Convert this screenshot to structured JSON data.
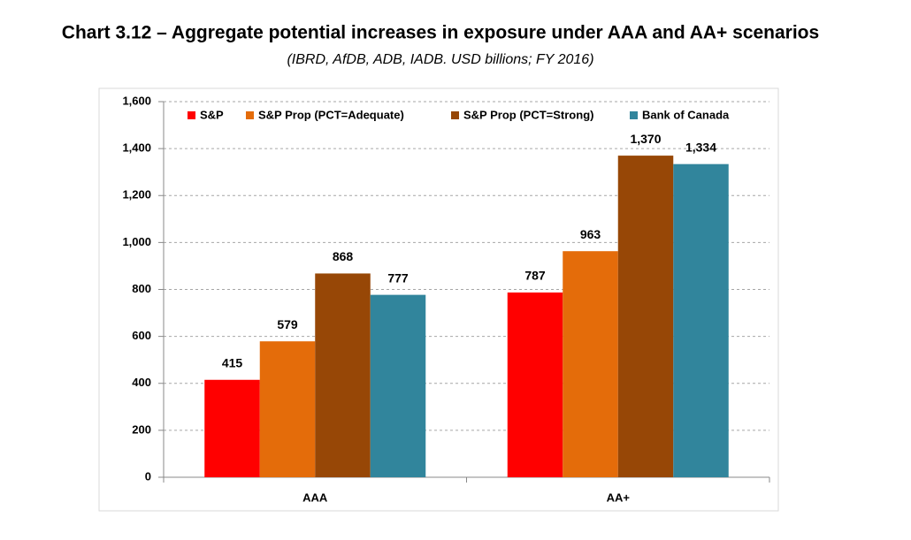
{
  "chart_data": {
    "type": "bar",
    "title": "Chart 3.12 – Aggregate potential increases in exposure under AAA and AA+ scenarios",
    "subtitle": "(IBRD, AfDB, ADB, IADB. USD billions; FY 2016)",
    "categories": [
      "AAA",
      "AA+"
    ],
    "series": [
      {
        "name": "S&P",
        "color": "#ff0000",
        "values": [
          415,
          787
        ]
      },
      {
        "name": "S&P Prop (PCT=Adequate)",
        "color": "#e46c0a",
        "values": [
          579,
          963
        ]
      },
      {
        "name": "S&P Prop (PCT=Strong)",
        "color": "#974706",
        "values": [
          868,
          1370
        ],
        "value_labels": [
          "868",
          "1,370"
        ]
      },
      {
        "name": "Bank of Canada",
        "color": "#31859c",
        "values": [
          777,
          1334
        ],
        "value_labels": [
          "777",
          "1,334"
        ]
      }
    ],
    "ylim": [
      0,
      1600
    ],
    "yticks": [
      0,
      200,
      400,
      600,
      800,
      {
        "value": 1000,
        "label": "1,000"
      },
      {
        "value": 1200,
        "label": "1,200"
      },
      {
        "value": 1400,
        "label": "1,400"
      },
      {
        "value": 1600,
        "label": "1,600"
      }
    ],
    "grid": true,
    "legend": "top"
  }
}
